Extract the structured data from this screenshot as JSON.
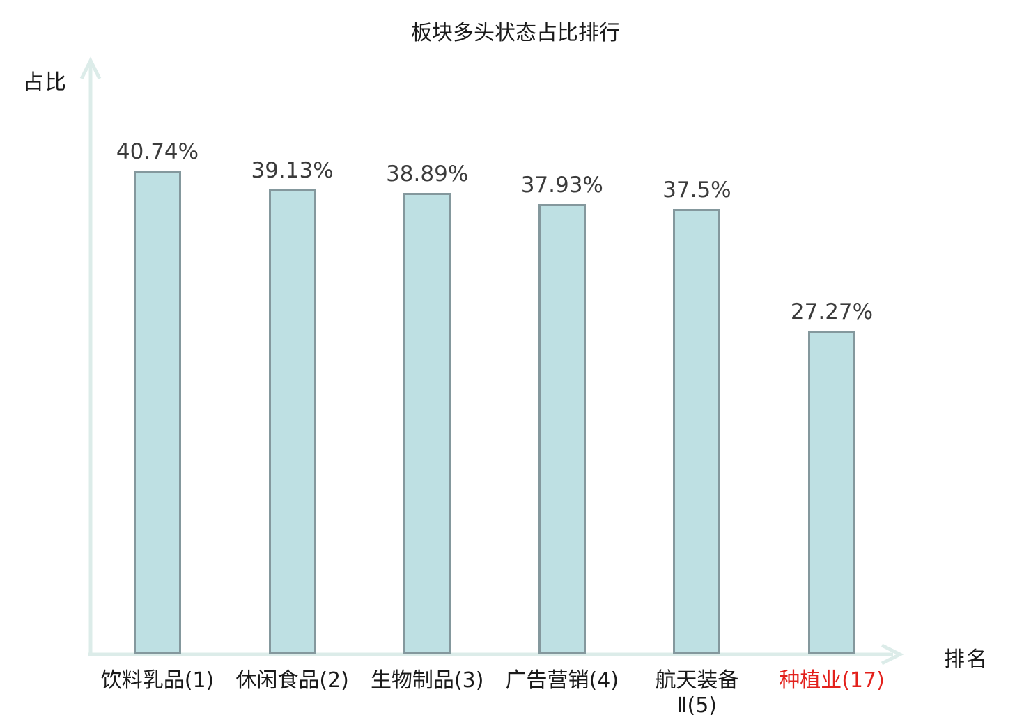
{
  "chart_data": {
    "type": "bar",
    "title": "板块多头状态占比排行",
    "ylabel": "占比",
    "xlabel": "排名",
    "categories": [
      "饮料乳品(1)",
      "休闲食品(2)",
      "生物制品(3)",
      "广告营销(4)",
      "航天装备\nⅡ(5)",
      "种植业(17)"
    ],
    "values": [
      40.74,
      39.13,
      38.89,
      37.93,
      37.5,
      27.27
    ],
    "value_labels": [
      "40.74%",
      "39.13%",
      "38.89%",
      "37.93%",
      "37.5%",
      "27.27%"
    ],
    "highlighted_category_index": 5,
    "ylim": [
      0,
      45
    ],
    "grid": false,
    "legend": "none",
    "colors": {
      "bar_fill": "#bee0e3",
      "bar_border": "#84989d",
      "axis": "#dcece9",
      "value_label": "#3b3b3b",
      "category_label": "#1a1a1a",
      "highlight_label": "#e3211c"
    }
  }
}
